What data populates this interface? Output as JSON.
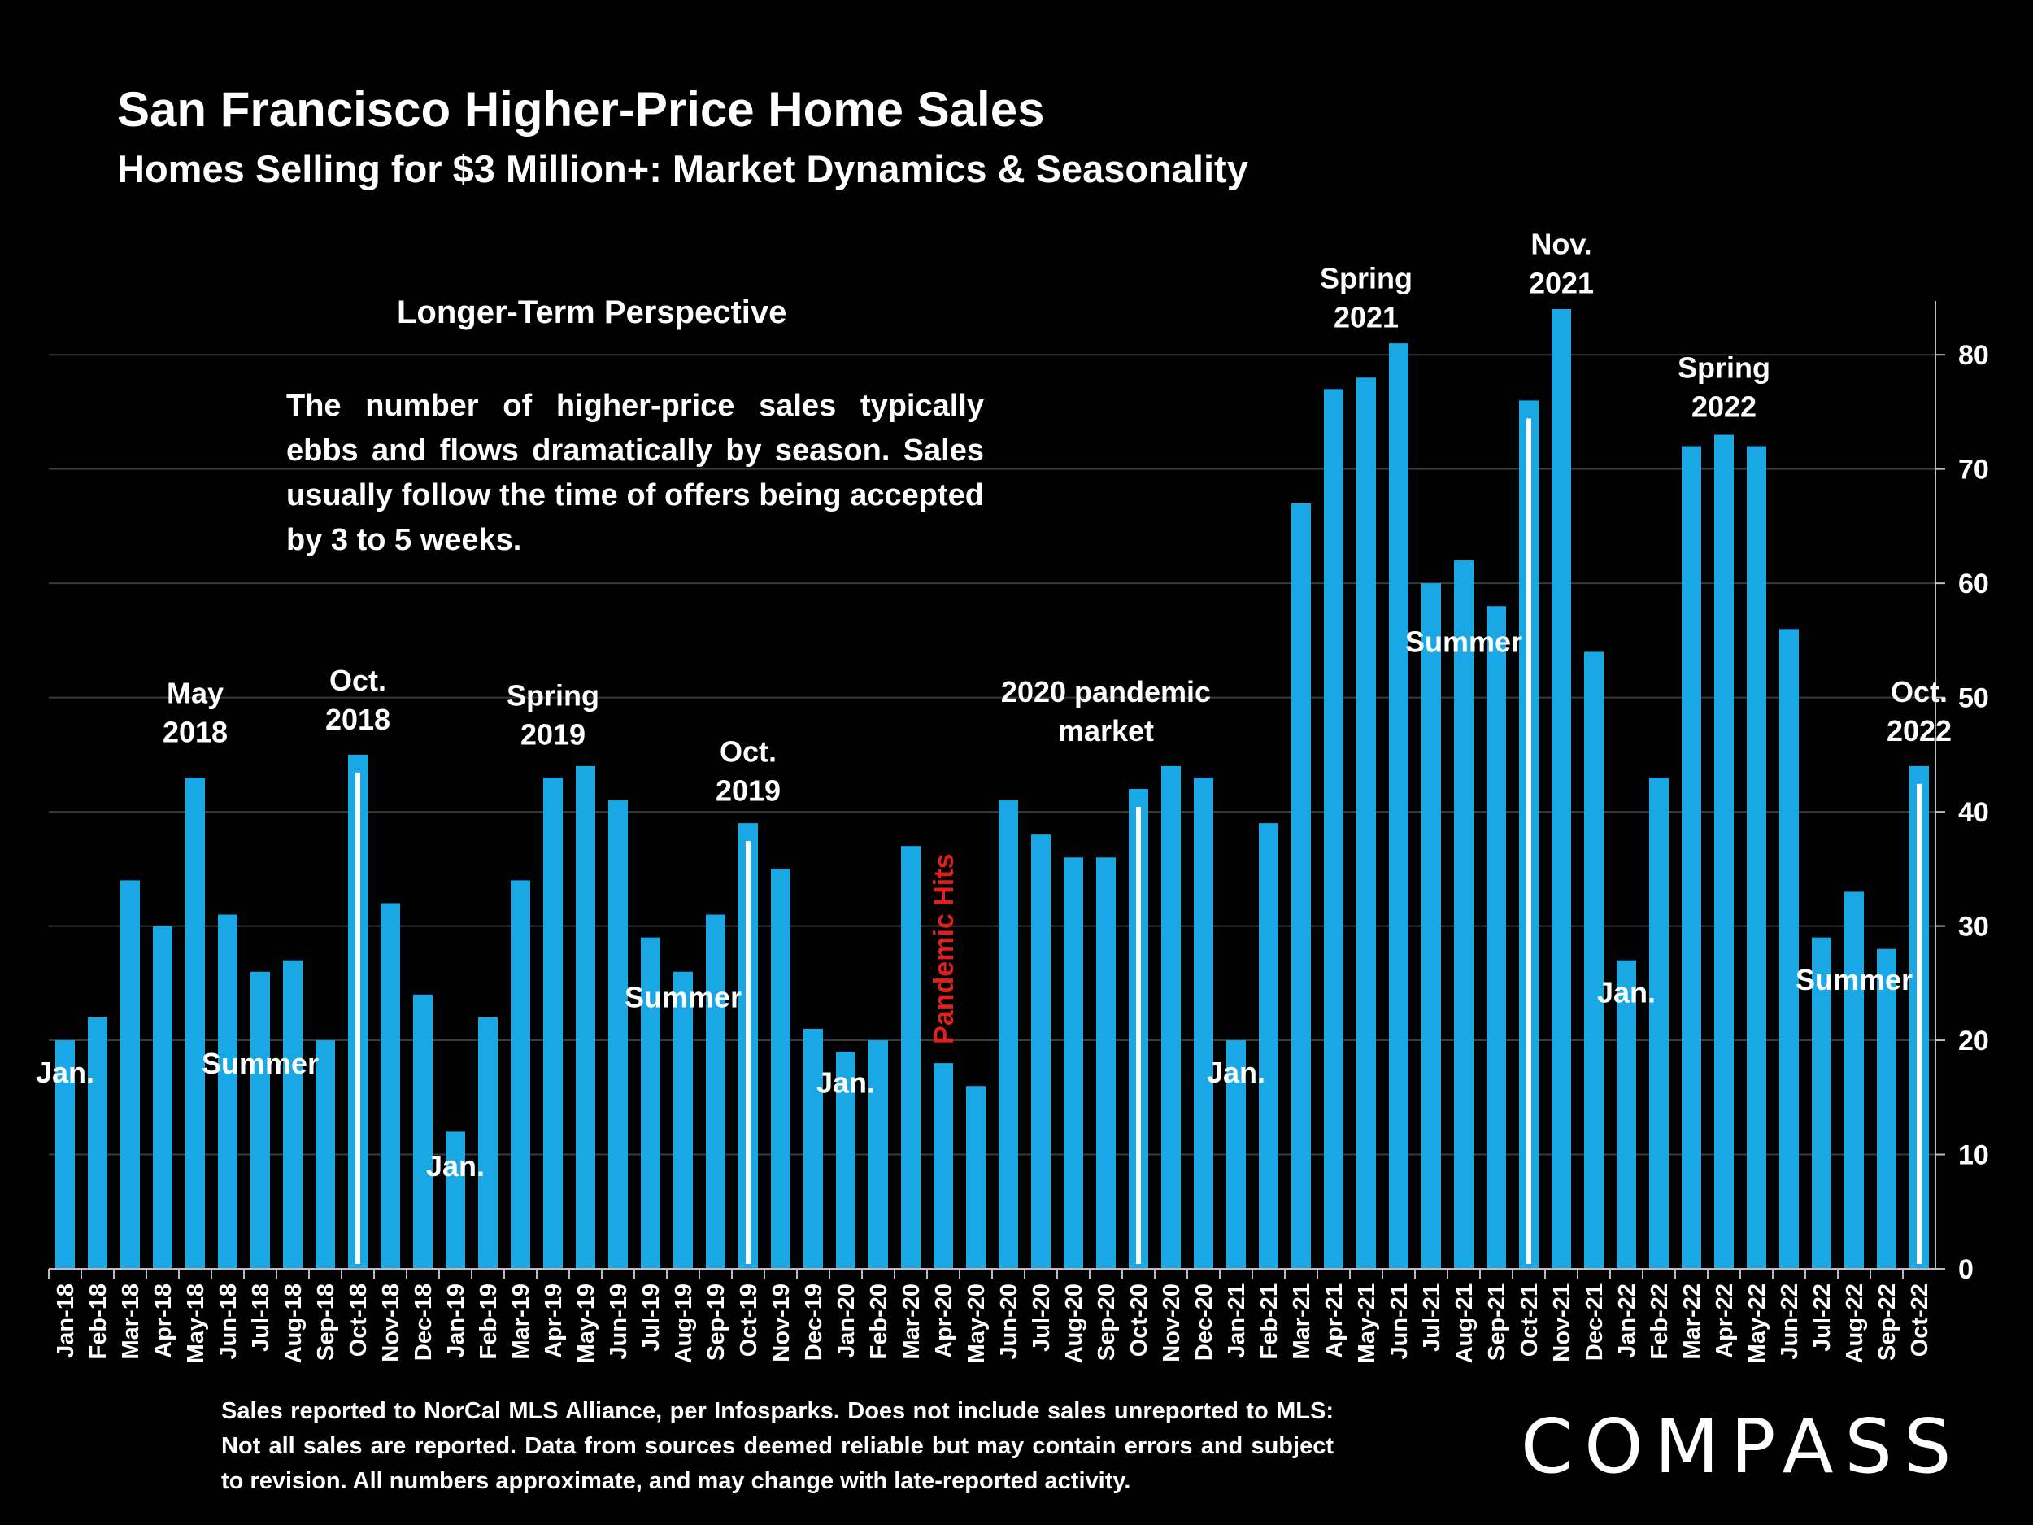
{
  "header": {
    "title": "San Francisco Higher-Price Home Sales",
    "subtitle": "Homes Selling for  $3 Million+: Market Dynamics & Seasonality"
  },
  "note": {
    "heading": "Longer-Term Perspective",
    "body": "The number of higher-price sales typically ebbs and flows dramatically by season. Sales usually follow the time of offers being accepted by 3 to 5 weeks."
  },
  "footnote": "Sales reported to NorCal MLS Alliance, per Infosparks. Does not include sales unreported to MLS: Not all sales are reported. Data from sources deemed reliable but may contain errors and subject to revision.  All numbers approximate, and may change with late-reported activity.",
  "brand": {
    "logo_text": "COMPASS"
  },
  "colors": {
    "background": "#000000",
    "bar": "#1aa7e6",
    "highlight_line": "#ffffff",
    "pandemic_text": "#e0201b",
    "grid": "#3a3a3a"
  },
  "chart_data": {
    "type": "bar",
    "categories": [
      "Jan-18",
      "Feb-18",
      "Mar-18",
      "Apr-18",
      "May-18",
      "Jun-18",
      "Jul-18",
      "Aug-18",
      "Sep-18",
      "Oct-18",
      "Nov-18",
      "Dec-18",
      "Jan-19",
      "Feb-19",
      "Mar-19",
      "Apr-19",
      "May-19",
      "Jun-19",
      "Jul-19",
      "Aug-19",
      "Sep-19",
      "Oct-19",
      "Nov-19",
      "Dec-19",
      "Jan-20",
      "Feb-20",
      "Mar-20",
      "Apr-20",
      "May-20",
      "Jun-20",
      "Jul-20",
      "Aug-20",
      "Sep-20",
      "Oct-20",
      "Nov-20",
      "Dec-20",
      "Jan-21",
      "Feb-21",
      "Mar-21",
      "Apr-21",
      "May-21",
      "Jun-21",
      "Jul-21",
      "Aug-21",
      "Sep-21",
      "Oct-21",
      "Nov-21",
      "Dec-21",
      "Jan-22",
      "Feb-22",
      "Mar-22",
      "Apr-22",
      "May-22",
      "Jun-22",
      "Jul-22",
      "Aug-22",
      "Sep-22",
      "Oct-22"
    ],
    "values": [
      20,
      22,
      34,
      30,
      43,
      31,
      26,
      27,
      20,
      45,
      32,
      24,
      12,
      22,
      34,
      43,
      44,
      41,
      29,
      26,
      31,
      39,
      35,
      21,
      19,
      20,
      37,
      18,
      16,
      41,
      38,
      36,
      36,
      42,
      44,
      43,
      20,
      39,
      67,
      77,
      78,
      81,
      60,
      62,
      58,
      76,
      84,
      54,
      27,
      43,
      72,
      73,
      72,
      56,
      29,
      33,
      28,
      44
    ],
    "highlighted": [
      "Oct-18",
      "Oct-19",
      "Oct-20",
      "Oct-21",
      "Oct-22"
    ],
    "ylim": [
      0,
      84
    ],
    "yticks": [
      0,
      10,
      20,
      30,
      40,
      50,
      60,
      70,
      80
    ],
    "y_axis_side": "right",
    "grid": true,
    "annotations": [
      {
        "text": "Jan.",
        "category": "Jan-18",
        "y": 16.3
      },
      {
        "text": "May 2018",
        "category": "May-18",
        "y": 49.5
      },
      {
        "text": "Summer",
        "category": "Jul-18",
        "y": 17.1
      },
      {
        "text": "Oct. 2018",
        "category": "Oct-18",
        "y": 50.6
      },
      {
        "text": "Jan.",
        "category": "Jan-19",
        "y": 8.1
      },
      {
        "text": "Spring 2019",
        "category": "Apr-19",
        "y": 49.3
      },
      {
        "text": "Summer",
        "category": "Aug-19",
        "y": 22.9
      },
      {
        "text": "Oct. 2019",
        "category": "Oct-19",
        "y": 44.4
      },
      {
        "text": "Jan.",
        "category": "Jan-20",
        "y": 15.4
      },
      {
        "text": "2020 pandemic market",
        "category": "Sep-20",
        "y": 49.6
      },
      {
        "text": "Jan.",
        "category": "Jan-21",
        "y": 16.3
      },
      {
        "text": "Spring 2021",
        "category": "May-21",
        "y": 85.8
      },
      {
        "text": "Summer",
        "category": "Aug-21",
        "y": 54.0
      },
      {
        "text": "Nov. 2021",
        "category": "Nov-21",
        "y": 88.8
      },
      {
        "text": "Jan.",
        "category": "Jan-22",
        "y": 23.3
      },
      {
        "text": "Spring 2022",
        "category": "Apr-22",
        "y": 78.0
      },
      {
        "text": "Summer",
        "category": "Aug-22",
        "y": 24.4
      },
      {
        "text": "Oct. 2022",
        "category": "Oct-22",
        "y": 49.6
      }
    ],
    "vertical_annotation": {
      "text": "Pandemic Hits",
      "category": "Apr-20",
      "y": 28.0
    }
  }
}
